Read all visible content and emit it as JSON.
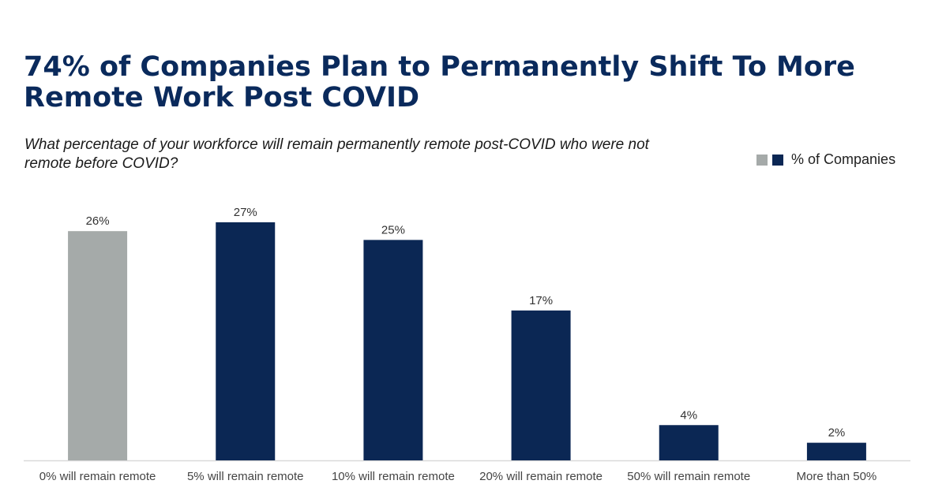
{
  "title": "74% of Companies Plan to Permanently Shift To More Remote Work Post COVID",
  "subtitle": "What percentage of your workforce will remain permanently remote post-COVID who were not remote before COVID?",
  "legend": {
    "label": "% of Companies"
  },
  "colors": {
    "highlight": "#a5aaa9",
    "primary": "#0b2754",
    "title": "#0a2a5c",
    "axis": "#d9d9d9"
  },
  "chart_data": {
    "type": "bar",
    "categories": [
      "0% will remain remote",
      "5% will remain remote",
      "10% will remain remote",
      "20% will remain remote",
      "50% will remain remote",
      "More than 50%"
    ],
    "series": [
      {
        "name": "% of Companies",
        "values": [
          26,
          27,
          25,
          17,
          4,
          2
        ]
      }
    ],
    "value_labels": [
      "26%",
      "27%",
      "25%",
      "17%",
      "4%",
      "2%"
    ],
    "highlight_index": 0,
    "ylim": [
      0,
      27
    ],
    "grid": false,
    "legend_position": "top-right"
  }
}
